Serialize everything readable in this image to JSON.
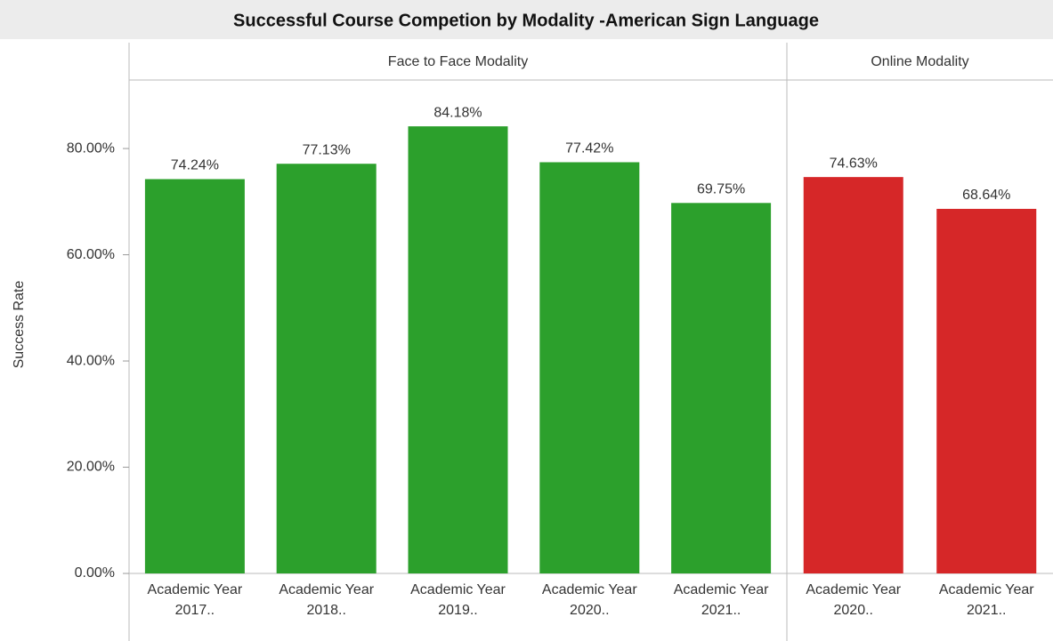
{
  "chart_data": {
    "type": "bar",
    "title": "Successful Course Competion by Modality -American Sign Language",
    "y_label": "Success Rate",
    "ylim": [
      0,
      92.9
    ],
    "yticks": [
      {
        "value": 0,
        "label": "0.00%"
      },
      {
        "value": 20,
        "label": "20.00%"
      },
      {
        "value": 40,
        "label": "40.00%"
      },
      {
        "value": 60,
        "label": "60.00%"
      },
      {
        "value": 80,
        "label": "80.00%"
      }
    ],
    "panels": [
      {
        "title": "Face to Face Modality",
        "color": "#2ca02c",
        "categories": [
          "Academic Year 2017..",
          "Academic Year 2018..",
          "Academic Year 2019..",
          "Academic Year 2020..",
          "Academic Year 2021.."
        ],
        "values": [
          74.24,
          77.13,
          84.18,
          77.42,
          69.75
        ],
        "value_labels": [
          "74.24%",
          "77.13%",
          "84.18%",
          "77.42%",
          "69.75%"
        ]
      },
      {
        "title": "Online Modality",
        "color": "#d62728",
        "categories": [
          "Academic Year 2020..",
          "Academic Year 2021.."
        ],
        "values": [
          74.63,
          68.64
        ],
        "value_labels": [
          "74.63%",
          "68.64%"
        ]
      }
    ]
  }
}
